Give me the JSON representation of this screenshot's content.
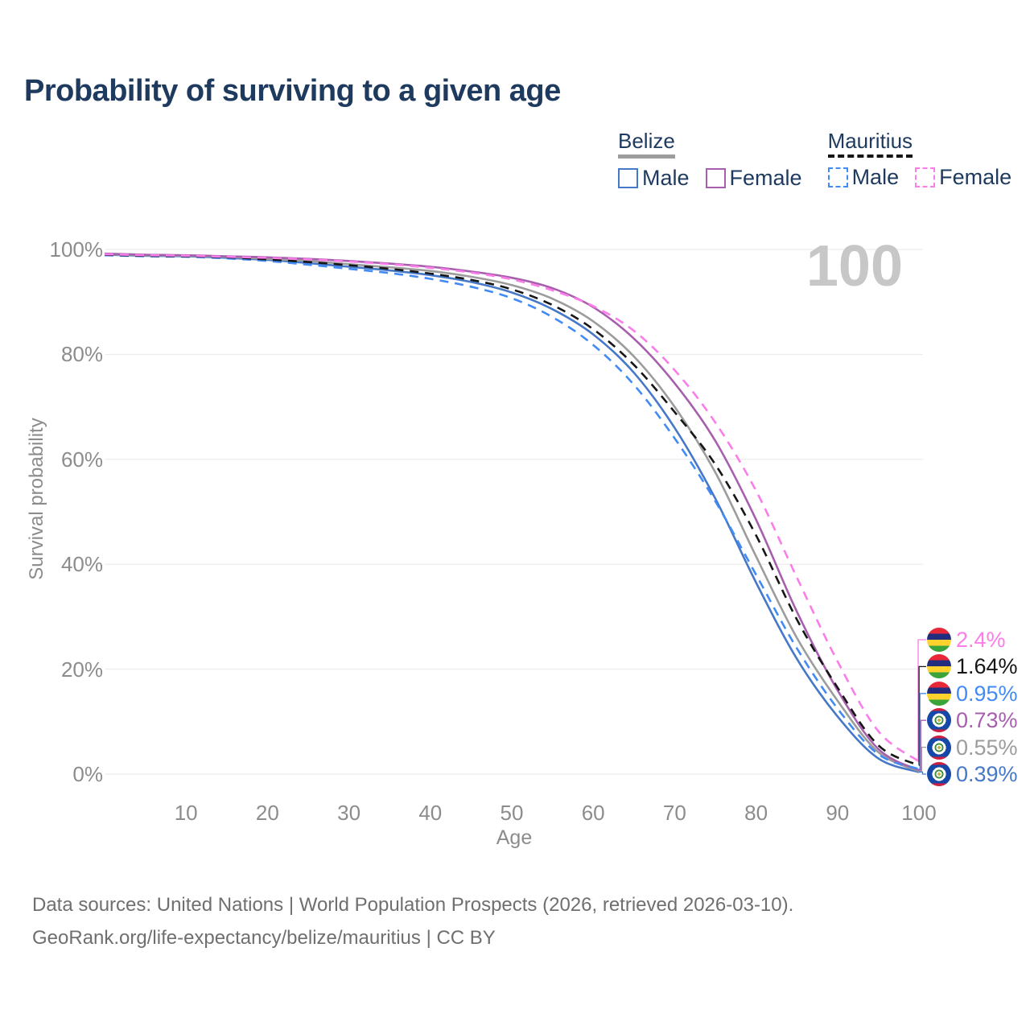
{
  "title": "Probability of surviving to a given age",
  "watermark": "100",
  "legend": {
    "groups": [
      {
        "name": "Belize",
        "line_style": "solid",
        "items": [
          {
            "label": "Male",
            "color": "#4678c8"
          },
          {
            "label": "Female",
            "color": "#a75fad"
          }
        ]
      },
      {
        "name": "Mauritius",
        "line_style": "dashed",
        "items": [
          {
            "label": "Male",
            "color": "#428bf5"
          },
          {
            "label": "Female",
            "color": "#fa7de9"
          }
        ]
      }
    ]
  },
  "y_axis": {
    "label": "Survival probability",
    "ticks": [
      {
        "value": 0,
        "label": "0%"
      },
      {
        "value": 20,
        "label": "20%"
      },
      {
        "value": 40,
        "label": "40%"
      },
      {
        "value": 60,
        "label": "60%"
      },
      {
        "value": 80,
        "label": "80%"
      },
      {
        "value": 100,
        "label": "100%"
      }
    ]
  },
  "x_axis": {
    "label": "Age",
    "ticks": [
      10,
      20,
      30,
      40,
      50,
      60,
      70,
      80,
      90,
      100
    ]
  },
  "end_labels": [
    {
      "label": "2.4%",
      "series": "Mauritius Female",
      "flag": "mauritius",
      "color": "#fa7de9"
    },
    {
      "label": "1.64%",
      "series": "Mauritius Both sexes",
      "flag": "mauritius",
      "color": "#161616"
    },
    {
      "label": "0.95%",
      "series": "Mauritius Male",
      "flag": "mauritius",
      "color": "#428bf5"
    },
    {
      "label": "0.73%",
      "series": "Belize Female",
      "flag": "belize",
      "color": "#a75fad"
    },
    {
      "label": "0.55%",
      "series": "Belize Both sexes",
      "flag": "belize",
      "color": "#9c9c9c"
    },
    {
      "label": "0.39%",
      "series": "Belize Male",
      "flag": "belize",
      "color": "#4678c8"
    }
  ],
  "footer": {
    "line1": "Data sources: United Nations | World Population Prospects (2026, retrieved 2026-03-10).",
    "line2": "GeoRank.org/life-expectancy/belize/mauritius | CC BY"
  },
  "chart_data": {
    "type": "line",
    "title": "Probability of surviving to a given age",
    "xlabel": "Age",
    "ylabel": "Survival probability",
    "xlim": [
      0,
      100
    ],
    "ylim": [
      0,
      100
    ],
    "grid": "horizontal",
    "legend_position": "top-right",
    "x": [
      0,
      5,
      10,
      15,
      20,
      25,
      30,
      35,
      40,
      45,
      50,
      55,
      60,
      65,
      70,
      75,
      80,
      85,
      90,
      95,
      100
    ],
    "series": [
      {
        "name": "Belize Male",
        "country": "Belize",
        "sex": "Male",
        "color": "#4678c8",
        "dash": "solid",
        "end_label": "0.39%",
        "values": [
          99.0,
          98.8,
          98.7,
          98.4,
          98.0,
          97.4,
          96.7,
          96.0,
          95.1,
          93.8,
          91.8,
          88.6,
          83.8,
          76.5,
          66.0,
          52.5,
          36.5,
          22.0,
          11.0,
          3.0,
          0.39
        ]
      },
      {
        "name": "Belize Both sexes",
        "country": "Belize",
        "sex": "Both sexes",
        "color": "#9c9c9c",
        "dash": "solid",
        "end_label": "0.55%",
        "values": [
          99.1,
          98.9,
          98.8,
          98.6,
          98.2,
          97.8,
          97.2,
          96.6,
          95.9,
          94.8,
          93.2,
          90.6,
          86.3,
          79.6,
          70.0,
          57.5,
          41.5,
          26.0,
          14.0,
          4.2,
          0.55
        ]
      },
      {
        "name": "Belize Female",
        "country": "Belize",
        "sex": "Female",
        "color": "#a75fad",
        "dash": "solid",
        "end_label": "0.73%",
        "values": [
          99.2,
          99.0,
          98.9,
          98.7,
          98.5,
          98.2,
          97.8,
          97.3,
          96.7,
          95.8,
          94.6,
          92.6,
          89.0,
          83.0,
          74.5,
          63.5,
          48.5,
          31.0,
          16.0,
          4.8,
          0.73
        ]
      },
      {
        "name": "Mauritius Male",
        "country": "Mauritius",
        "sex": "Male",
        "color": "#428bf5",
        "dash": "dashed",
        "end_label": "0.95%",
        "values": [
          98.9,
          98.7,
          98.6,
          98.3,
          97.8,
          97.1,
          96.3,
          95.5,
          94.4,
          92.9,
          90.7,
          87.1,
          81.8,
          74.2,
          64.0,
          52.0,
          38.0,
          24.0,
          12.5,
          3.8,
          0.95
        ]
      },
      {
        "name": "Mauritius Both sexes",
        "country": "Mauritius",
        "sex": "Both sexes",
        "color": "#161616",
        "dash": "dashed",
        "end_label": "1.64%",
        "values": [
          99.0,
          98.8,
          98.7,
          98.5,
          98.1,
          97.6,
          97.0,
          96.3,
          95.4,
          94.2,
          92.4,
          89.4,
          84.8,
          78.0,
          69.0,
          59.0,
          45.5,
          29.5,
          16.5,
          5.5,
          1.64
        ]
      },
      {
        "name": "Mauritius Female",
        "country": "Mauritius",
        "sex": "Female",
        "color": "#fa7de9",
        "dash": "dashed",
        "end_label": "2.4%",
        "values": [
          99.1,
          98.9,
          98.8,
          98.6,
          98.4,
          98.1,
          97.7,
          97.2,
          96.5,
          95.6,
          94.3,
          92.2,
          89.2,
          84.5,
          77.0,
          67.0,
          54.0,
          37.5,
          21.5,
          8.2,
          2.4
        ]
      }
    ]
  }
}
